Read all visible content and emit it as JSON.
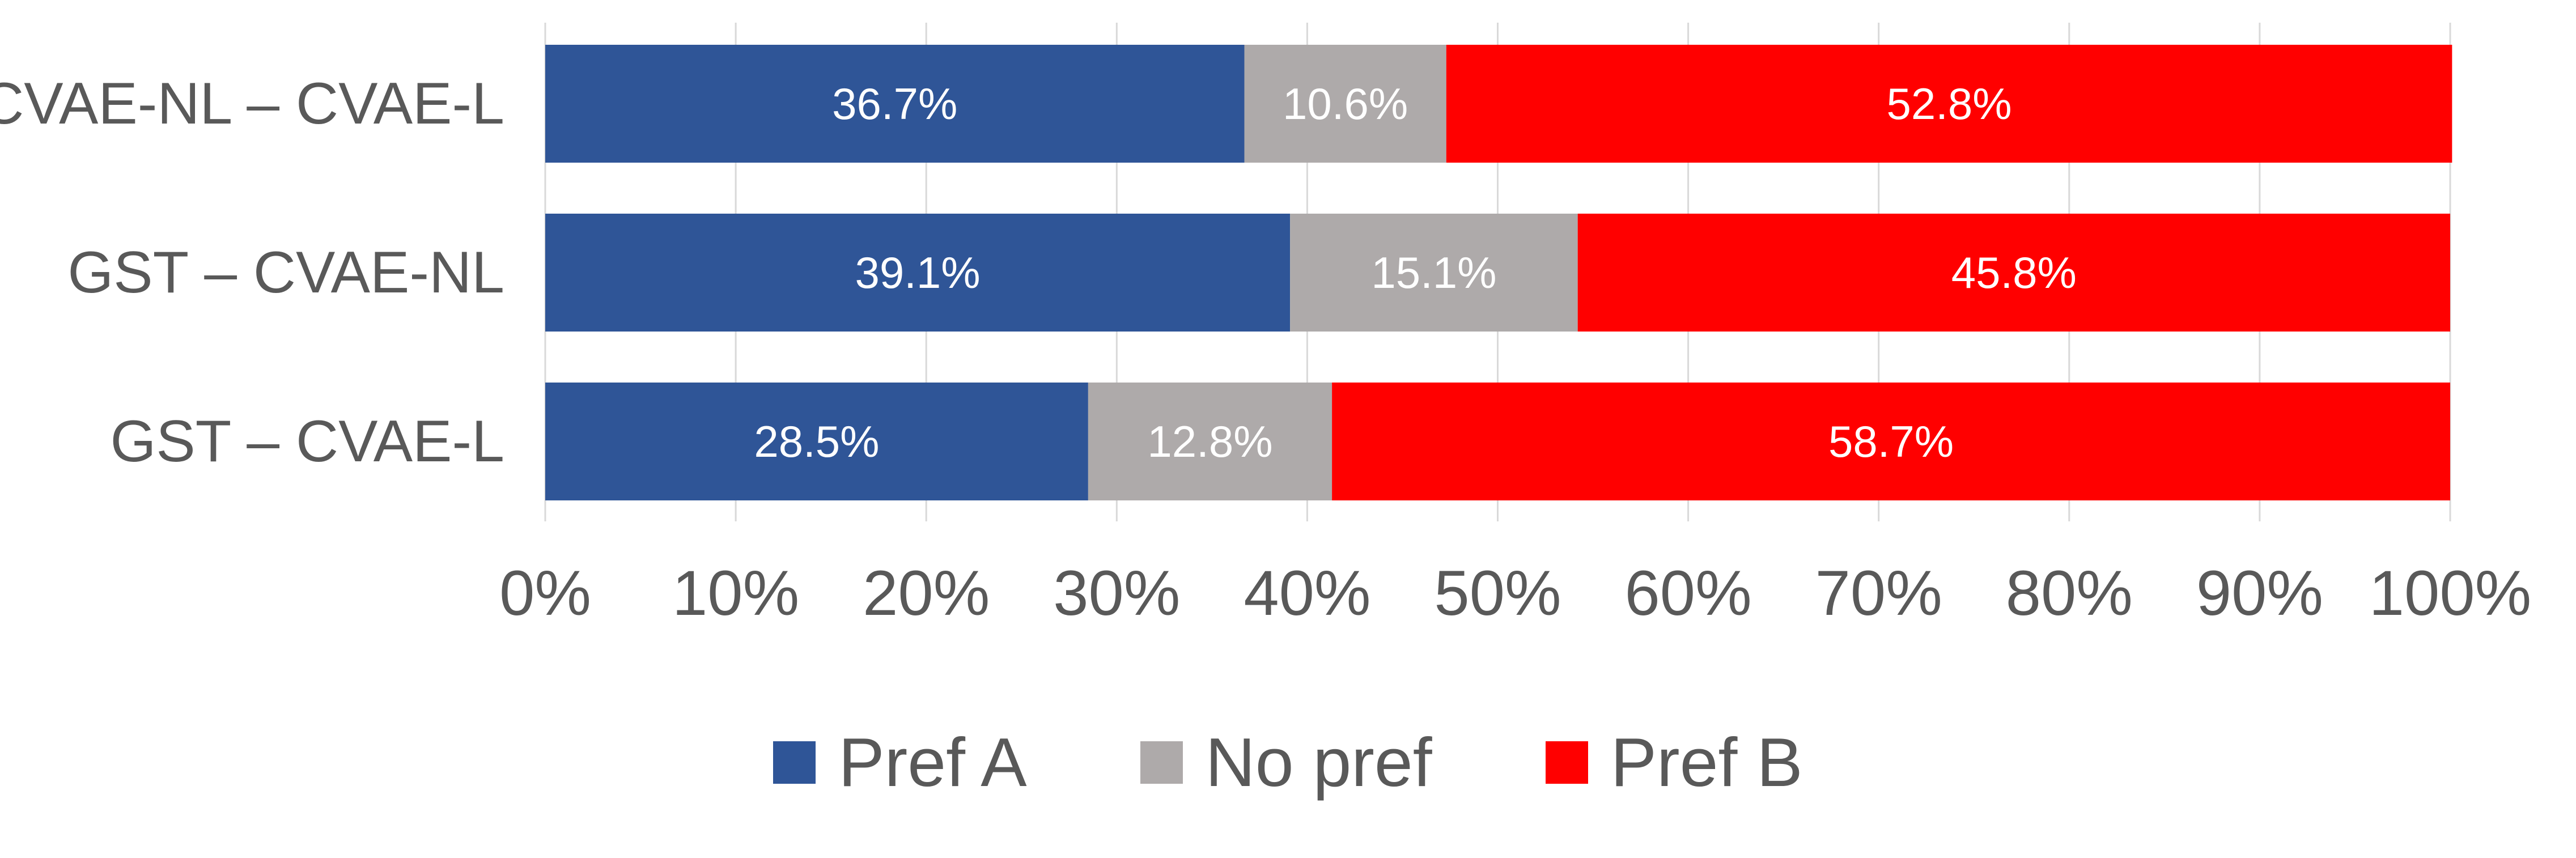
{
  "chart_data": {
    "type": "bar",
    "orientation": "horizontal",
    "stacked": true,
    "title": "",
    "xlabel": "",
    "ylabel": "",
    "categories": [
      "CVAE-NL – CVAE-L",
      "GST – CVAE-NL",
      "GST – CVAE-L"
    ],
    "series": [
      {
        "name": "Pref A",
        "color": "#2F5597",
        "values": [
          36.7,
          39.1,
          28.5
        ],
        "labels": [
          "36.7%",
          "39.1%",
          "28.5%"
        ]
      },
      {
        "name": "No pref",
        "color": "#AEAAAA",
        "values": [
          10.6,
          15.1,
          12.8
        ],
        "labels": [
          "10.6%",
          "15.1%",
          "12.8%"
        ]
      },
      {
        "name": "Pref B",
        "color": "#FF0000",
        "values": [
          52.8,
          45.8,
          58.7
        ],
        "labels": [
          "52.8%",
          "45.8%",
          "58.7%"
        ]
      }
    ],
    "xlim": [
      0,
      100
    ],
    "xticks": [
      "0%",
      "10%",
      "20%",
      "30%",
      "40%",
      "50%",
      "60%",
      "70%",
      "80%",
      "90%",
      "100%"
    ],
    "grid": "vertical",
    "legend": "bottom",
    "text_color": "#595959",
    "grid_color": "#D9D9D9",
    "data_label_color": "#FFFFFF"
  }
}
